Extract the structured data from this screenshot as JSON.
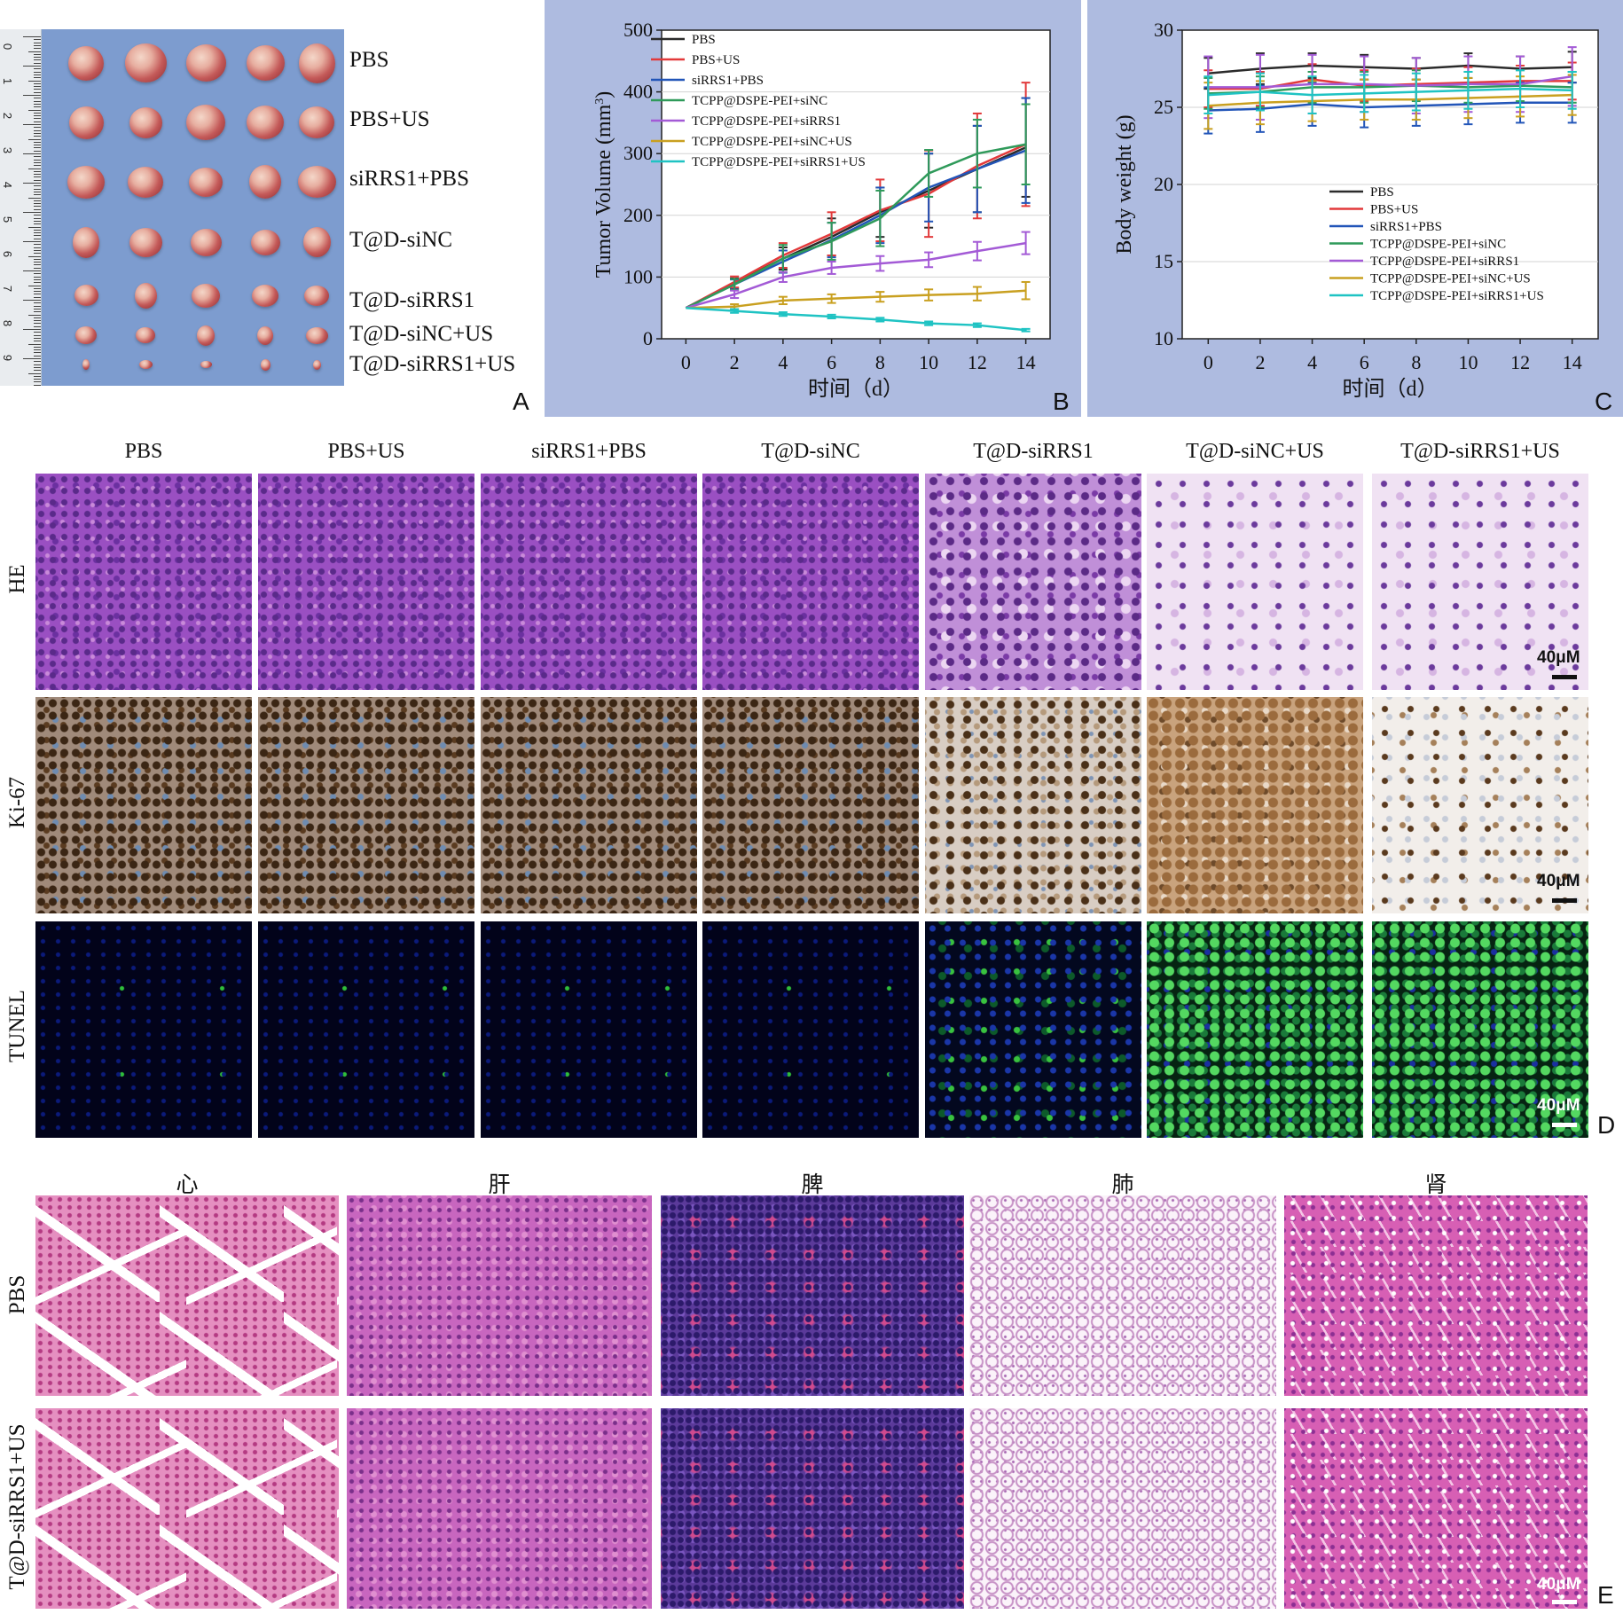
{
  "panel_letters": {
    "a": "A",
    "b": "B",
    "c": "C",
    "d": "D",
    "e": "E"
  },
  "panelA": {
    "labels": [
      "PBS",
      "PBS+US",
      "siRRS1+PBS",
      "T@D-siNC",
      "T@D-siRRS1",
      "T@D-siNC+US",
      "T@D-siRRS1+US"
    ],
    "ruler_numbers": [
      "0",
      "1",
      "2",
      "3",
      "4",
      "5",
      "6",
      "7",
      "8",
      "9"
    ]
  },
  "chart_data": [
    {
      "type": "line",
      "xlabel": "时间（d）",
      "ylabel": "Tumor Volume (mm",
      "ylabel_sup": "3",
      "ylabel_close": ")",
      "x": [
        0,
        2,
        4,
        6,
        8,
        10,
        12,
        14
      ],
      "xlim": [
        -1,
        15
      ],
      "ylim": [
        0,
        500
      ],
      "yticks": [
        0,
        100,
        200,
        300,
        400,
        500
      ],
      "legend_position": "top-left",
      "series": [
        {
          "name": "PBS",
          "color": "#2b2b2b",
          "values": [
            50,
            90,
            130,
            165,
            205,
            240,
            275,
            310
          ],
          "err": [
            0,
            8,
            18,
            30,
            40,
            60,
            70,
            80
          ]
        },
        {
          "name": "PBS+US",
          "color": "#e2393a",
          "values": [
            50,
            92,
            135,
            170,
            208,
            235,
            280,
            315
          ],
          "err": [
            0,
            9,
            20,
            35,
            50,
            70,
            85,
            100
          ]
        },
        {
          "name": "siRRS1+PBS",
          "color": "#2255b8",
          "values": [
            50,
            88,
            125,
            160,
            200,
            245,
            275,
            305
          ],
          "err": [
            0,
            8,
            18,
            28,
            45,
            55,
            70,
            85
          ]
        },
        {
          "name": "TCPP@DSPE-PEI+siNC",
          "color": "#2f9a5a",
          "values": [
            50,
            88,
            130,
            158,
            195,
            268,
            300,
            315
          ],
          "err": [
            0,
            9,
            22,
            30,
            45,
            38,
            55,
            65
          ]
        },
        {
          "name": "TCPP@DSPE-PEI+siRRS1",
          "color": "#a35ad6",
          "values": [
            50,
            72,
            100,
            115,
            122,
            128,
            142,
            155
          ],
          "err": [
            0,
            6,
            8,
            10,
            12,
            12,
            15,
            18
          ]
        },
        {
          "name": "TCPP@DSPE-PEI+siNC+US",
          "color": "#c9a020",
          "values": [
            50,
            52,
            62,
            65,
            68,
            71,
            73,
            78
          ],
          "err": [
            0,
            4,
            6,
            7,
            8,
            9,
            11,
            14
          ]
        },
        {
          "name": "TCPP@DSPE-PEI+siRRS1+US",
          "color": "#1fc3c3",
          "values": [
            50,
            45,
            40,
            36,
            31,
            25,
            22,
            14
          ],
          "err": [
            0,
            3,
            3,
            3,
            3,
            3,
            3,
            2
          ]
        }
      ]
    },
    {
      "type": "line",
      "xlabel": "时间（d）",
      "ylabel": "Body weight (g)",
      "x": [
        0,
        2,
        4,
        6,
        8,
        10,
        12,
        14
      ],
      "xlim": [
        -1,
        15
      ],
      "ylim": [
        10,
        30
      ],
      "yticks": [
        10,
        15,
        20,
        25,
        30
      ],
      "legend_position": "bottom-right",
      "series": [
        {
          "name": "PBS",
          "color": "#2b2b2b",
          "values": [
            27.2,
            27.5,
            27.7,
            27.6,
            27.5,
            27.7,
            27.5,
            27.6
          ],
          "err": [
            1.0,
            1.0,
            0.8,
            0.8,
            0.7,
            0.8,
            0.8,
            1.0
          ]
        },
        {
          "name": "PBS+US",
          "color": "#e2393a",
          "values": [
            26.2,
            26.2,
            26.8,
            26.4,
            26.5,
            26.6,
            26.7,
            26.7
          ],
          "err": [
            1.2,
            1.1,
            1.0,
            1.0,
            1.0,
            1.0,
            1.0,
            1.2
          ]
        },
        {
          "name": "siRRS1+PBS",
          "color": "#2255b8",
          "values": [
            24.8,
            24.9,
            25.2,
            25.0,
            25.1,
            25.2,
            25.3,
            25.3
          ],
          "err": [
            1.5,
            1.5,
            1.4,
            1.3,
            1.3,
            1.3,
            1.3,
            1.3
          ]
        },
        {
          "name": "TCPP@DSPE-PEI+siNC",
          "color": "#2f9a5a",
          "values": [
            25.9,
            26.0,
            26.3,
            26.3,
            26.4,
            26.3,
            26.4,
            26.3
          ],
          "err": [
            1.0,
            1.0,
            1.0,
            1.0,
            1.0,
            1.0,
            1.0,
            1.0
          ]
        },
        {
          "name": "TCPP@DSPE-PEI+siRRS1",
          "color": "#a35ad6",
          "values": [
            26.3,
            26.3,
            26.5,
            26.5,
            26.4,
            26.5,
            26.5,
            27.0
          ],
          "err": [
            2.0,
            2.1,
            1.9,
            1.8,
            1.8,
            1.8,
            1.8,
            1.9
          ]
        },
        {
          "name": "TCPP@DSPE-PEI+siNC+US",
          "color": "#c9a020",
          "values": [
            25.1,
            25.3,
            25.4,
            25.5,
            25.5,
            25.6,
            25.7,
            25.8
          ],
          "err": [
            1.5,
            1.4,
            1.3,
            1.3,
            1.3,
            1.3,
            1.3,
            1.3
          ]
        },
        {
          "name": "TCPP@DSPE-PEI+siRRS1+US",
          "color": "#1fc3c3",
          "values": [
            25.8,
            26.0,
            25.8,
            25.9,
            26.0,
            26.1,
            26.2,
            26.1
          ],
          "err": [
            1.2,
            1.2,
            1.2,
            1.2,
            1.2,
            1.2,
            1.2,
            1.2
          ]
        }
      ]
    }
  ],
  "panelD": {
    "columns": [
      "PBS",
      "PBS+US",
      "siRRS1+PBS",
      "T@D-siNC",
      "T@D-siRRS1",
      "T@D-siNC+US",
      "T@D-siRRS1+US"
    ],
    "rows": [
      "HE",
      "Ki-67",
      "TUNEL"
    ],
    "scale_label": "40μM"
  },
  "panelE": {
    "organs": [
      "心",
      "肝",
      "脾",
      "肺",
      "肾"
    ],
    "rows": [
      "PBS",
      "T@D-siRRS1+US"
    ],
    "scale_label": "40μM"
  }
}
